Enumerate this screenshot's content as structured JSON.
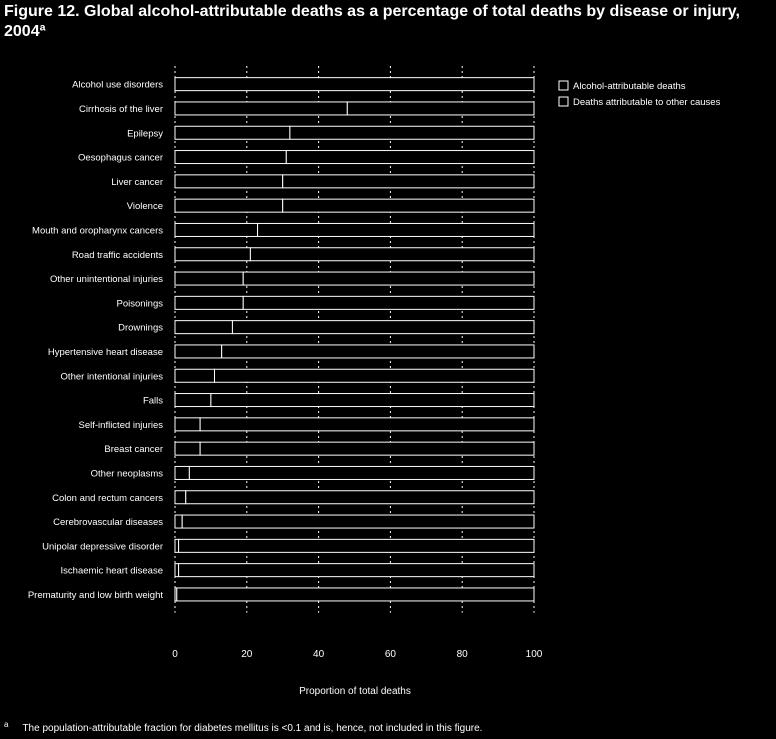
{
  "title": "Figure 12. Global alcohol-attributable deaths as a percentage of total deaths by disease or injury, 2004ª",
  "footnote": {
    "marker": "a",
    "text": "The population-attributable fraction for diabetes mellitus is <0.1 and is, hence, not included in this figure."
  },
  "colors": {
    "background": "#000000",
    "bar_fill": "#000000",
    "bar_stroke": "#ffffff",
    "text": "#ffffff"
  },
  "chart_data": {
    "type": "bar",
    "orientation": "horizontal",
    "stacked": true,
    "categories": [
      "Alcohol use disorders",
      "Cirrhosis of the liver",
      "Epilepsy",
      "Oesophagus cancer",
      "Liver cancer",
      "Violence",
      "Mouth and oropharynx cancers",
      "Road traffic accidents",
      "Other unintentional injuries",
      "Poisonings",
      "Drownings",
      "Hypertensive heart disease",
      "Other intentional injuries",
      "Falls",
      "Self-inflicted injuries",
      "Breast cancer",
      "Other neoplasms",
      "Colon and rectum cancers",
      "Cerebrovascular diseases",
      "Unipolar depressive disorder",
      "Ischaemic heart disease",
      "Prematurity and low birth weight"
    ],
    "series": [
      {
        "name": "Alcohol-attributable deaths",
        "values": [
          100,
          48,
          32,
          31,
          30,
          30,
          23,
          21,
          19,
          19,
          16,
          13,
          11,
          10,
          7,
          7,
          4,
          3,
          2,
          1,
          1,
          0.5
        ]
      },
      {
        "name": "Deaths attributable to other causes",
        "values": [
          0,
          52,
          68,
          69,
          70,
          70,
          77,
          79,
          81,
          81,
          84,
          87,
          89,
          90,
          93,
          93,
          96,
          97,
          98,
          99,
          99,
          99.5
        ]
      }
    ],
    "xlabel": "Proportion of total deaths",
    "xlim": [
      0,
      100
    ],
    "xticks": [
      "0",
      "20",
      "40",
      "60",
      "80",
      "100"
    ],
    "grid": true,
    "legend_position": "top-right"
  }
}
